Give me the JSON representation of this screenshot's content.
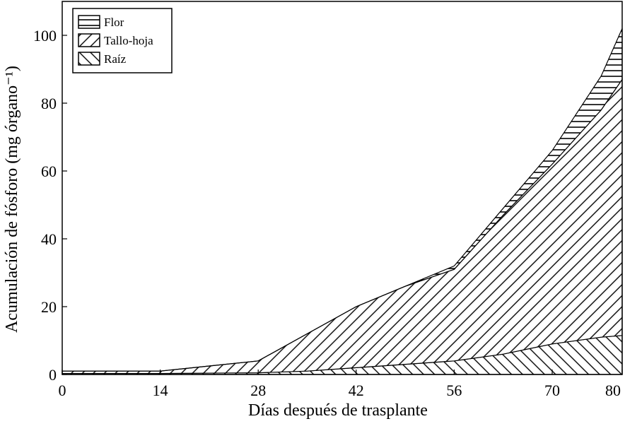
{
  "chart_data": {
    "type": "stacked_area",
    "xlabel": "Días después de trasplante",
    "ylabel": "Acumulación de fósforo (mg órgano⁻¹)",
    "x": [
      0,
      7,
      14,
      21,
      28,
      35,
      42,
      49,
      56,
      63,
      70,
      77,
      80
    ],
    "series": [
      {
        "name": "Raíz",
        "color": "#000000",
        "hatch": "forward",
        "values": [
          0.3,
          0.3,
          0.3,
          0.4,
          0.5,
          1,
          2,
          3,
          4,
          6,
          9,
          11,
          11.5
        ]
      },
      {
        "name": "Tallo-hoja",
        "color": "#000000",
        "hatch": "back",
        "values": [
          0.7,
          0.7,
          0.7,
          2.1,
          3.5,
          11,
          18,
          23,
          27,
          41,
          53,
          67,
          75.5
        ]
      },
      {
        "name": "Flor",
        "color": "#000000",
        "hatch": "horizontal",
        "values": [
          0,
          0,
          0,
          0,
          0,
          0,
          0,
          0,
          1,
          2,
          4,
          10,
          15
        ]
      }
    ],
    "xlim": [
      0,
      80
    ],
    "xticks": [
      0,
      14,
      28,
      42,
      56,
      70,
      80
    ],
    "ylim": [
      0,
      110
    ],
    "yticks": [
      0,
      20,
      40,
      60,
      80,
      100
    ],
    "legend": "upper-left",
    "grid": false
  }
}
